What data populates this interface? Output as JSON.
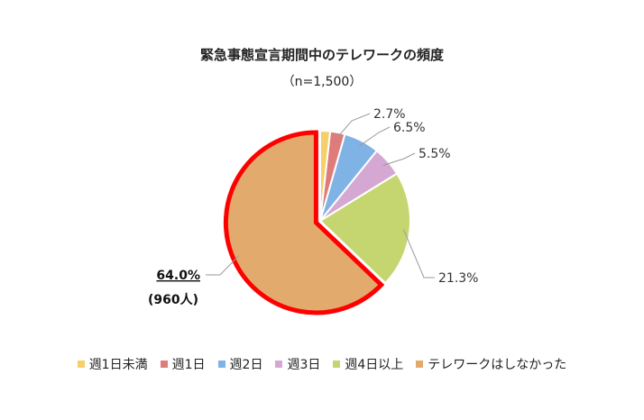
{
  "chart_data": {
    "type": "pie",
    "title": "緊急事態宣言期間中のテレワークの頻度",
    "subtitle": "（n=1,500）",
    "categories": [
      "週1日未満",
      "週1日",
      "週2日",
      "週3日",
      "週4日以上",
      "テレワークはしなかった"
    ],
    "values": [
      1.8,
      2.7,
      6.5,
      5.5,
      21.3,
      64.0
    ],
    "colors": [
      "#f5d06a",
      "#e07b7b",
      "#7fb3e6",
      "#d4a8d2",
      "#c5d670",
      "#e3aa6e"
    ],
    "data_labels": [
      "",
      "2.7%",
      "6.5%",
      "5.5%",
      "21.3%",
      "64.0%"
    ],
    "highlight_label": "(960人)",
    "highlight_outline_color": "#ff0000",
    "legend_position": "bottom"
  }
}
